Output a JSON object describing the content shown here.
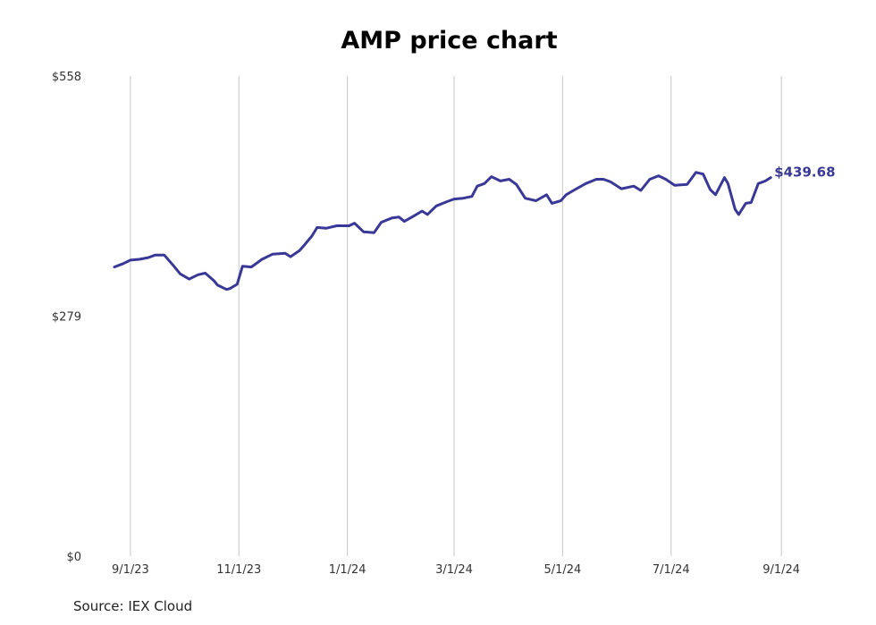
{
  "chart_data": {
    "type": "line",
    "title": "AMP price chart",
    "xlabel": "",
    "ylabel": "",
    "ylim": [
      0,
      558
    ],
    "y_ticks": [
      {
        "value": 0,
        "label": "$0"
      },
      {
        "value": 279,
        "label": "$279"
      },
      {
        "value": 558,
        "label": "$558"
      }
    ],
    "x_ticks": [
      {
        "date": "2023-09-01",
        "label": "9/1/23"
      },
      {
        "date": "2023-11-01",
        "label": "11/1/23"
      },
      {
        "date": "2024-01-01",
        "label": "1/1/24"
      },
      {
        "date": "2024-03-01",
        "label": "3/1/24"
      },
      {
        "date": "2024-05-01",
        "label": "5/1/24"
      },
      {
        "date": "2024-07-01",
        "label": "7/1/24"
      },
      {
        "date": "2024-09-01",
        "label": "9/1/24"
      }
    ],
    "xlim": [
      "2023-08-23",
      "2024-09-14"
    ],
    "grid": {
      "vertical": true,
      "horizontal": false
    },
    "line_color": "#3a3896",
    "series": [
      {
        "last_value_label": "$439.68",
        "points": [
          [
            "2023-08-23",
            336
          ],
          [
            "2023-08-28",
            340
          ],
          [
            "2023-09-01",
            344
          ],
          [
            "2023-09-06",
            345
          ],
          [
            "2023-09-11",
            347
          ],
          [
            "2023-09-15",
            350
          ],
          [
            "2023-09-20",
            350
          ],
          [
            "2023-09-25",
            338
          ],
          [
            "2023-09-29",
            328
          ],
          [
            "2023-10-04",
            322
          ],
          [
            "2023-10-06",
            324
          ],
          [
            "2023-10-09",
            327
          ],
          [
            "2023-10-13",
            329
          ],
          [
            "2023-10-18",
            320
          ],
          [
            "2023-10-20",
            315
          ],
          [
            "2023-10-25",
            310
          ],
          [
            "2023-10-27",
            311
          ],
          [
            "2023-10-31",
            316
          ],
          [
            "2023-11-03",
            337
          ],
          [
            "2023-11-08",
            336
          ],
          [
            "2023-11-14",
            345
          ],
          [
            "2023-11-20",
            351
          ],
          [
            "2023-11-27",
            352
          ],
          [
            "2023-11-30",
            348
          ],
          [
            "2023-12-05",
            355
          ],
          [
            "2023-12-08",
            362
          ],
          [
            "2023-12-12",
            372
          ],
          [
            "2023-12-15",
            382
          ],
          [
            "2023-12-20",
            381
          ],
          [
            "2023-12-26",
            384
          ],
          [
            "2024-01-02",
            384
          ],
          [
            "2024-01-05",
            387
          ],
          [
            "2024-01-10",
            377
          ],
          [
            "2024-01-16",
            376
          ],
          [
            "2024-01-20",
            388
          ],
          [
            "2024-01-26",
            393
          ],
          [
            "2024-01-30",
            394
          ],
          [
            "2024-02-02",
            389
          ],
          [
            "2024-02-07",
            395
          ],
          [
            "2024-02-12",
            401
          ],
          [
            "2024-02-15",
            397
          ],
          [
            "2024-02-20",
            407
          ],
          [
            "2024-02-26",
            412
          ],
          [
            "2024-03-01",
            415
          ],
          [
            "2024-03-06",
            416
          ],
          [
            "2024-03-11",
            418
          ],
          [
            "2024-03-14",
            430
          ],
          [
            "2024-03-18",
            433
          ],
          [
            "2024-03-22",
            441
          ],
          [
            "2024-03-27",
            436
          ],
          [
            "2024-04-01",
            438
          ],
          [
            "2024-04-05",
            432
          ],
          [
            "2024-04-10",
            416
          ],
          [
            "2024-04-16",
            413
          ],
          [
            "2024-04-22",
            420
          ],
          [
            "2024-04-25",
            410
          ],
          [
            "2024-04-30",
            413
          ],
          [
            "2024-05-03",
            420
          ],
          [
            "2024-05-08",
            426
          ],
          [
            "2024-05-14",
            433
          ],
          [
            "2024-05-20",
            438
          ],
          [
            "2024-05-24",
            438
          ],
          [
            "2024-05-28",
            435
          ],
          [
            "2024-06-03",
            427
          ],
          [
            "2024-06-10",
            430
          ],
          [
            "2024-06-14",
            425
          ],
          [
            "2024-06-19",
            438
          ],
          [
            "2024-06-24",
            442
          ],
          [
            "2024-06-28",
            438
          ],
          [
            "2024-07-03",
            431
          ],
          [
            "2024-07-10",
            432
          ],
          [
            "2024-07-15",
            446
          ],
          [
            "2024-07-19",
            444
          ],
          [
            "2024-07-23",
            426
          ],
          [
            "2024-07-26",
            420
          ],
          [
            "2024-07-31",
            440
          ],
          [
            "2024-08-02",
            433
          ],
          [
            "2024-08-06",
            403
          ],
          [
            "2024-08-08",
            397
          ],
          [
            "2024-08-12",
            410
          ],
          [
            "2024-08-15",
            411
          ],
          [
            "2024-08-19",
            433
          ],
          [
            "2024-08-23",
            436
          ],
          [
            "2024-08-26",
            440
          ]
        ]
      }
    ]
  },
  "source": "Source: IEX Cloud"
}
